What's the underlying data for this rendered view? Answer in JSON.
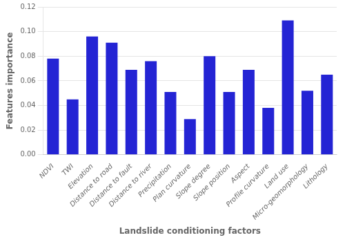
{
  "chart_data": {
    "type": "bar",
    "categories": [
      "NDVI",
      "TWI",
      "Elevation",
      "Distance to road",
      "Distance to fault",
      "Distance to river",
      "Precipitation",
      "Plan curvature",
      "Slope degree",
      "Slope position",
      "Aspect",
      "Profile curvature",
      "Land use",
      "Micro-geomorphology",
      "Lithology"
    ],
    "values": [
      0.078,
      0.045,
      0.096,
      0.091,
      0.069,
      0.076,
      0.051,
      0.029,
      0.08,
      0.051,
      0.069,
      0.038,
      0.109,
      0.052,
      0.065
    ],
    "color": "#2424d4",
    "xlabel": "Landslide conditioning factors",
    "ylabel": "Features importance",
    "ylim": [
      0,
      0.12
    ],
    "yticks": [
      {
        "value": 0,
        "label": "0.00"
      },
      0.02,
      0.04,
      0.06,
      0.08,
      {
        "value": 0.1,
        "label": "0.10"
      },
      0.12
    ],
    "grid": true
  }
}
